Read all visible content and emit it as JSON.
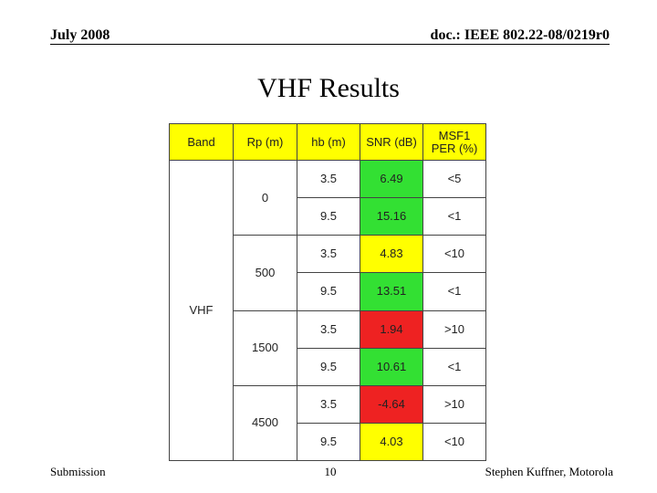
{
  "header": {
    "date": "July 2008",
    "doc": "doc.: IEEE 802.22-08/0219r0"
  },
  "title": "VHF Results",
  "table": {
    "columns": [
      "Band",
      "Rp (m)",
      "hb (m)",
      "SNR (dB)",
      "MSF1\nPER (%)"
    ],
    "header_color": "#ffff00",
    "band": "VHF",
    "groups": [
      {
        "rp": "0",
        "rows": [
          {
            "hb": "3.5",
            "snr": "6.49",
            "per": "<5",
            "color": "#33e033"
          },
          {
            "hb": "9.5",
            "snr": "15.16",
            "per": "<1",
            "color": "#33e033"
          }
        ]
      },
      {
        "rp": "500",
        "rows": [
          {
            "hb": "3.5",
            "snr": "4.83",
            "per": "<10",
            "color": "#ffff00"
          },
          {
            "hb": "9.5",
            "snr": "13.51",
            "per": "<1",
            "color": "#33e033"
          }
        ]
      },
      {
        "rp": "1500",
        "rows": [
          {
            "hb": "3.5",
            "snr": "1.94",
            "per": ">10",
            "color": "#ee2222"
          },
          {
            "hb": "9.5",
            "snr": "10.61",
            "per": "<1",
            "color": "#33e033"
          }
        ]
      },
      {
        "rp": "4500",
        "rows": [
          {
            "hb": "3.5",
            "snr": "-4.64",
            "per": ">10",
            "color": "#ee2222"
          },
          {
            "hb": "9.5",
            "snr": "4.03",
            "per": "<10",
            "color": "#ffff00"
          }
        ]
      }
    ]
  },
  "footer": {
    "left": "Submission",
    "page": "10",
    "right": "Stephen Kuffner, Motorola"
  }
}
